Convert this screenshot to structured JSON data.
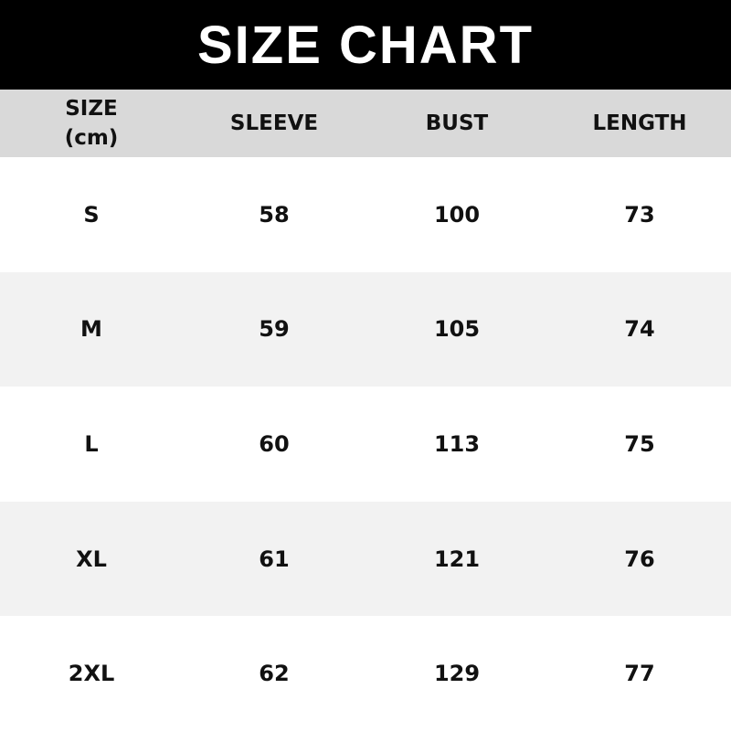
{
  "title": "SIZE CHART",
  "headers": [
    "SIZE\n(cm)",
    "SLEEVE",
    "BUST",
    "LENGTH"
  ],
  "header_lines": {
    "size": "SIZE",
    "unit": "(cm)"
  },
  "rows": [
    [
      "S",
      "58",
      "100",
      "73"
    ],
    [
      "M",
      "59",
      "105",
      "74"
    ],
    [
      "L",
      "60",
      "113",
      "75"
    ],
    [
      "XL",
      "61",
      "121",
      "76"
    ],
    [
      "2XL",
      "62",
      "129",
      "77"
    ]
  ],
  "colors": {
    "title_bg": "#000000",
    "header_bg": "#d9d9d9",
    "alt_row_bg": "#f2f2f2"
  }
}
